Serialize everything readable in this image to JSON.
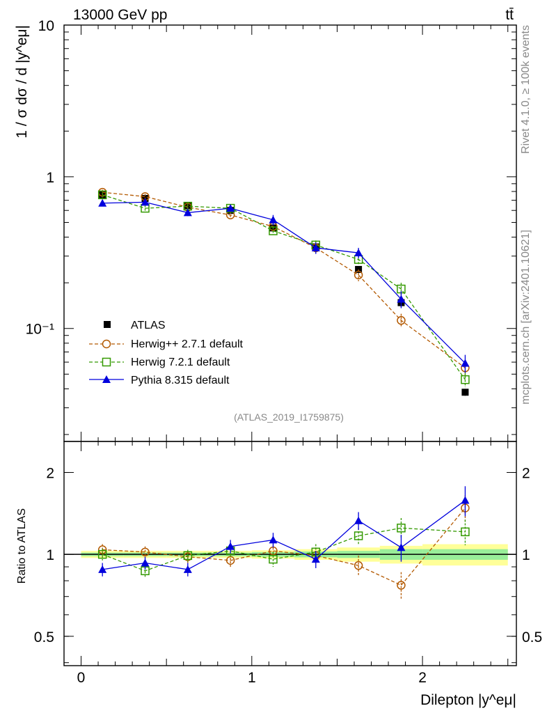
{
  "header": {
    "left_label": "13000 GeV pp",
    "right_label": "tt̄"
  },
  "side_labels": {
    "rivet": "Rivet 4.1.0, ≥ 100k events",
    "mcplots": "mcplots.cern.ch [arXiv:2401.10621]"
  },
  "analysis_id": "(ATLAS_2019_I1759875)",
  "chart_data": [
    {
      "panel": "main",
      "type": "line",
      "yscale": "log",
      "ylabel": "1 / σ  dσ / d |y^eμ|",
      "ylim": [
        0.018,
        10
      ],
      "xlim": [
        -0.1,
        2.55
      ],
      "ytick_labels": [
        {
          "value": 10,
          "label": "10"
        },
        {
          "value": 1,
          "label": "1"
        },
        {
          "value": 0.1,
          "label": "10⁻¹"
        }
      ],
      "x": [
        0.125,
        0.375,
        0.625,
        0.875,
        1.125,
        1.375,
        1.625,
        1.875,
        2.25
      ],
      "series": [
        {
          "name": "ATLAS",
          "color": "#000000",
          "marker": "filled-square",
          "line": "none",
          "values": [
            0.76,
            0.72,
            0.645,
            0.6,
            0.46,
            0.345,
            0.245,
            0.148,
            0.038
          ],
          "errors": [
            0.02,
            0.02,
            0.02,
            0.02,
            0.015,
            0.012,
            0.012,
            0.01,
            0.002
          ]
        },
        {
          "name": "Herwig++ 2.7.1 default",
          "color": "#b35900",
          "marker": "open-circle",
          "line": "dashed",
          "values": [
            0.79,
            0.74,
            0.63,
            0.56,
            0.47,
            0.34,
            0.225,
            0.113,
            0.055
          ],
          "errors": [
            0.03,
            0.03,
            0.03,
            0.03,
            0.025,
            0.025,
            0.02,
            0.012,
            0.007
          ]
        },
        {
          "name": "Herwig 7.2.1 default",
          "color": "#339900",
          "marker": "open-square",
          "line": "dashed",
          "values": [
            0.76,
            0.62,
            0.64,
            0.62,
            0.44,
            0.355,
            0.285,
            0.182,
            0.046
          ],
          "errors": [
            0.03,
            0.03,
            0.03,
            0.03,
            0.025,
            0.025,
            0.02,
            0.018,
            0.005
          ]
        },
        {
          "name": "Pythia 8.315 default",
          "color": "#0000dd",
          "marker": "filled-triangle",
          "line": "solid",
          "values": [
            0.67,
            0.68,
            0.58,
            0.62,
            0.52,
            0.34,
            0.315,
            0.156,
            0.059
          ],
          "errors": [
            0.03,
            0.03,
            0.03,
            0.03,
            0.04,
            0.03,
            0.025,
            0.02,
            0.008
          ]
        }
      ],
      "legend_location": "lower-left"
    },
    {
      "panel": "ratio",
      "type": "line",
      "yscale": "log",
      "ylabel": "Ratio to ATLAS",
      "xlabel": "Dilepton |y^eμ|",
      "ylim": [
        0.39,
        2.6
      ],
      "xlim": [
        -0.1,
        2.55
      ],
      "ytick_labels": [
        {
          "value": 2,
          "label": "2"
        },
        {
          "value": 1,
          "label": "1"
        },
        {
          "value": 0.5,
          "label": "0.5"
        }
      ],
      "xtick_labels": [
        {
          "value": 0,
          "label": "0"
        },
        {
          "value": 1,
          "label": "1"
        },
        {
          "value": 2,
          "label": "2"
        }
      ],
      "x": [
        0.125,
        0.375,
        0.625,
        0.875,
        1.125,
        1.375,
        1.625,
        1.875,
        2.25
      ],
      "bin_edges": [
        0,
        0.25,
        0.5,
        0.75,
        1.0,
        1.25,
        1.5,
        1.75,
        2.0,
        2.5
      ],
      "band_stat": [
        0.015,
        0.015,
        0.015,
        0.015,
        0.02,
        0.025,
        0.03,
        0.045,
        0.045
      ],
      "band_total": [
        0.03,
        0.03,
        0.03,
        0.03,
        0.035,
        0.045,
        0.06,
        0.075,
        0.09
      ],
      "series": [
        {
          "name": "Herwig++ 2.7.1 default",
          "color": "#b35900",
          "marker": "open-circle",
          "line": "dashed",
          "values": [
            1.04,
            1.02,
            0.98,
            0.95,
            1.03,
            0.99,
            0.91,
            0.77,
            1.48
          ],
          "errors": [
            0.05,
            0.05,
            0.05,
            0.05,
            0.06,
            0.07,
            0.08,
            0.09,
            0.17
          ]
        },
        {
          "name": "Herwig 7.2.1 default",
          "color": "#339900",
          "marker": "open-square",
          "line": "dashed",
          "values": [
            1.0,
            0.87,
            0.99,
            1.03,
            0.96,
            1.02,
            1.17,
            1.25,
            1.21
          ],
          "errors": [
            0.05,
            0.05,
            0.05,
            0.05,
            0.06,
            0.07,
            0.08,
            0.11,
            0.13
          ]
        },
        {
          "name": "Pythia 8.315 default",
          "color": "#0000dd",
          "marker": "filled-triangle",
          "line": "solid",
          "values": [
            0.88,
            0.93,
            0.88,
            1.07,
            1.13,
            0.96,
            1.33,
            1.06,
            1.58
          ],
          "errors": [
            0.05,
            0.05,
            0.05,
            0.06,
            0.07,
            0.07,
            0.1,
            0.12,
            0.2
          ]
        }
      ]
    }
  ]
}
